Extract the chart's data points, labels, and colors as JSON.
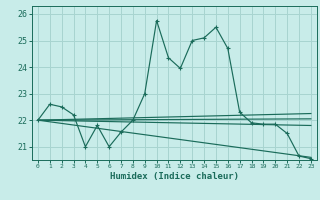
{
  "xlabel": "Humidex (Indice chaleur)",
  "background_color": "#c8ece9",
  "grid_color": "#a8d4d0",
  "line_color": "#1a6b5a",
  "xlim": [
    -0.5,
    23.5
  ],
  "ylim": [
    20.5,
    26.3
  ],
  "yticks": [
    21,
    22,
    23,
    24,
    25,
    26
  ],
  "xticks": [
    0,
    1,
    2,
    3,
    4,
    5,
    6,
    7,
    8,
    9,
    10,
    11,
    12,
    13,
    14,
    15,
    16,
    17,
    18,
    19,
    20,
    21,
    22,
    23
  ],
  "line1_x": [
    0,
    1,
    2,
    3,
    4,
    5,
    6,
    7,
    8,
    9,
    10,
    11,
    12,
    13,
    14,
    15,
    16,
    17,
    18,
    19,
    20,
    21,
    22,
    23
  ],
  "line1_y": [
    22.0,
    22.6,
    22.5,
    22.2,
    21.0,
    21.8,
    21.0,
    21.55,
    22.0,
    23.0,
    25.75,
    24.35,
    23.95,
    25.0,
    25.1,
    25.5,
    24.7,
    22.3,
    21.9,
    21.85,
    21.85,
    21.5,
    20.65,
    20.55
  ],
  "line2_x": [
    0,
    23
  ],
  "line2_y": [
    22.0,
    22.25
  ],
  "line3_x": [
    0,
    23
  ],
  "line3_y": [
    22.0,
    20.6
  ],
  "line4_x": [
    0,
    23
  ],
  "line4_y": [
    22.0,
    22.05
  ],
  "line5_x": [
    0,
    23
  ],
  "line5_y": [
    22.0,
    21.8
  ]
}
